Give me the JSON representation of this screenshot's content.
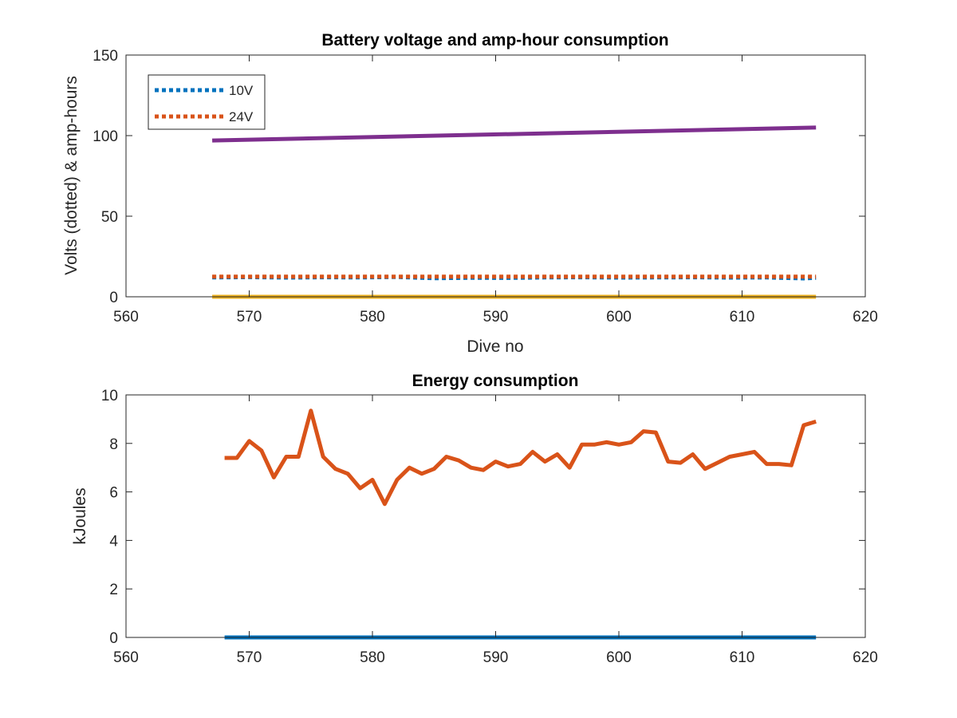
{
  "chart_data": [
    {
      "type": "line",
      "title": "Battery voltage and amp-hour consumption",
      "xlabel": "Dive no",
      "ylabel": "Volts (dotted) & amp-hours",
      "xlim": [
        560,
        620
      ],
      "ylim": [
        0,
        150
      ],
      "xticks": [
        560,
        570,
        580,
        590,
        600,
        610,
        620
      ],
      "yticks": [
        0,
        50,
        100,
        150
      ],
      "grid": false,
      "legend_position": "top-left",
      "series": [
        {
          "name": "10V",
          "color": "#0072BD",
          "style": "dotted",
          "x": [
            567,
            570,
            573,
            576,
            579,
            582,
            585,
            588,
            591,
            594,
            597,
            600,
            603,
            606,
            609,
            612,
            615,
            616
          ],
          "y": [
            12,
            12.2,
            11.9,
            12.1,
            12.0,
            12.3,
            11.5,
            11.8,
            11.7,
            12.0,
            12.1,
            11.9,
            12.0,
            12.1,
            11.9,
            12.0,
            11.4,
            11.8
          ]
        },
        {
          "name": "24V",
          "color": "#D95319",
          "style": "dotted",
          "x": [
            567,
            616
          ],
          "y": [
            12.5,
            12.5
          ]
        },
        {
          "color": "#7E2F8E",
          "style": "solid",
          "x": [
            567,
            616
          ],
          "y": [
            97,
            105
          ]
        },
        {
          "color": "#EDB120",
          "style": "solid",
          "x": [
            567,
            616
          ],
          "y": [
            0,
            0
          ]
        }
      ]
    },
    {
      "type": "line",
      "title": "Energy consumption",
      "ylabel": "kJoules",
      "xlim": [
        560,
        620
      ],
      "ylim": [
        0,
        10
      ],
      "xticks": [
        560,
        570,
        580,
        590,
        600,
        610,
        620
      ],
      "yticks": [
        0,
        2,
        4,
        6,
        8,
        10
      ],
      "grid": false,
      "series": [
        {
          "color": "#D95319",
          "style": "solid",
          "x": [
            568,
            569,
            570,
            571,
            572,
            573,
            574,
            575,
            576,
            577,
            578,
            579,
            580,
            581,
            582,
            583,
            584,
            585,
            586,
            587,
            588,
            589,
            590,
            591,
            592,
            593,
            594,
            595,
            596,
            597,
            598,
            599,
            600,
            601,
            602,
            603,
            604,
            605,
            606,
            607,
            608,
            609,
            610,
            611,
            612,
            613,
            614,
            615,
            616
          ],
          "y": [
            7.4,
            7.4,
            8.1,
            7.7,
            6.6,
            7.45,
            7.45,
            9.35,
            7.45,
            6.95,
            6.75,
            6.15,
            6.5,
            5.5,
            6.5,
            7.0,
            6.75,
            6.95,
            7.45,
            7.3,
            7.0,
            6.9,
            7.25,
            7.05,
            7.15,
            7.65,
            7.25,
            7.55,
            7.0,
            7.95,
            7.95,
            8.05,
            7.95,
            8.05,
            8.5,
            8.45,
            7.25,
            7.2,
            7.55,
            6.95,
            7.2,
            7.45,
            7.55,
            7.65,
            7.15,
            7.15,
            7.1,
            8.75,
            8.9
          ]
        },
        {
          "color": "#0072BD",
          "style": "solid",
          "x": [
            568,
            616
          ],
          "y": [
            0,
            0
          ]
        }
      ]
    }
  ]
}
